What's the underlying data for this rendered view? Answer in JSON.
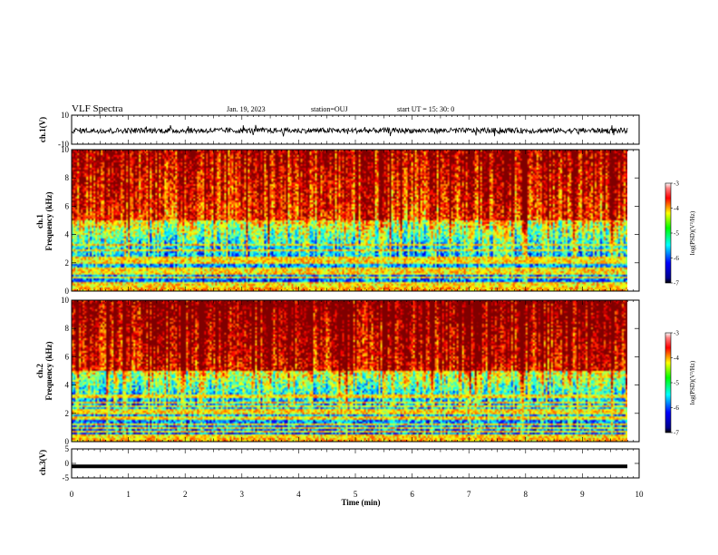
{
  "header": {
    "title": "VLF Spectra",
    "date": "Jan. 19, 2023",
    "station": "station=OUJ",
    "start": "start  UT =   15: 30: 0"
  },
  "chart_data": [
    {
      "type": "line",
      "panel": "ch1-waveform",
      "ylabel": "ch.1(V)",
      "ylim": [
        -10,
        10
      ],
      "ytick_labels": [
        "10",
        "-10"
      ],
      "xlim": [
        0,
        10
      ],
      "color": "#000000"
    },
    {
      "type": "heatmap",
      "panel": "ch1-spectrogram",
      "ylabel_line1": "ch.1",
      "ylabel_line2": "Frequency (kHz)",
      "ylim": [
        0,
        10
      ],
      "ytick_labels": [
        "0",
        "2",
        "4",
        "6",
        "8",
        "10"
      ],
      "xlim": [
        0,
        9.8
      ],
      "colorbar": {
        "label": "log(PSD)(V²/Hz)",
        "range": [
          -7,
          -3
        ],
        "tick_labels": [
          "-3",
          "-4",
          "-5",
          "-6",
          "-7"
        ]
      }
    },
    {
      "type": "heatmap",
      "panel": "ch2-spectrogram",
      "ylabel_line1": "ch.2",
      "ylabel_line2": "Frequency (kHz)",
      "ylim": [
        0,
        10
      ],
      "ytick_labels": [
        "0",
        "2",
        "4",
        "6",
        "8",
        "10"
      ],
      "xlim": [
        0,
        9.8
      ],
      "colorbar": {
        "label": "log(PSD)(V²/Hz)",
        "range": [
          -7,
          -3
        ],
        "tick_labels": [
          "-3",
          "-4",
          "-5",
          "-6",
          "-7"
        ]
      }
    },
    {
      "type": "line",
      "panel": "ch3-waveform",
      "ylabel": "ch.3(V)",
      "ylim": [
        -5,
        5
      ],
      "ytick_labels": [
        "5",
        "0",
        "-5"
      ],
      "xlim": [
        0,
        10
      ],
      "xlabel": "Time (min)",
      "xtick_labels": [
        "0",
        "1",
        "2",
        "3",
        "4",
        "5",
        "6",
        "7",
        "8",
        "9",
        "10"
      ],
      "constant_value": -1,
      "color": "#000000"
    }
  ]
}
